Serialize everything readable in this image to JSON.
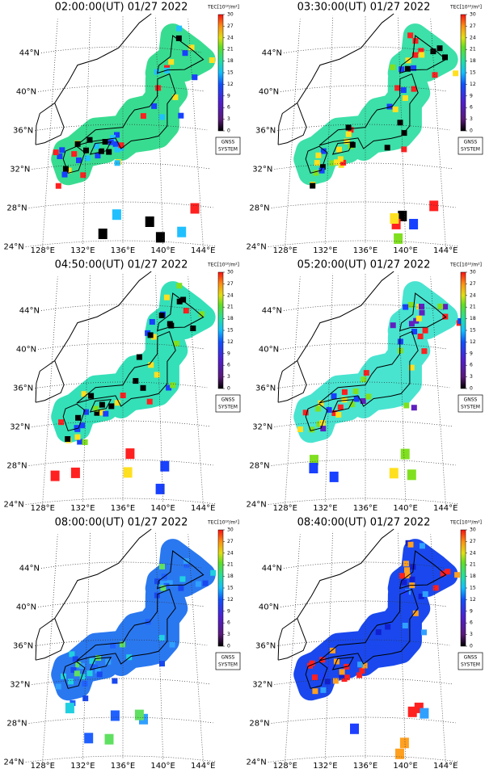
{
  "panels": [
    {
      "title": "02:00:00(UT) 01/27 2022"
    },
    {
      "title": "03:30:00(UT) 01/27 2022"
    },
    {
      "title": "04:50:00(UT) 01/27 2022"
    },
    {
      "title": "05:20:00(UT) 01/27 2022"
    },
    {
      "title": "08:00:00(UT) 01/27 2022"
    },
    {
      "title": "08:40:00(UT) 01/27 2022"
    }
  ],
  "lat_ticks": [
    {
      "value": 44,
      "label": "44°N"
    },
    {
      "value": 40,
      "label": "40°N"
    },
    {
      "value": 36,
      "label": "36°N"
    },
    {
      "value": 32,
      "label": "32°N"
    },
    {
      "value": 28,
      "label": "28°N"
    },
    {
      "value": 24,
      "label": "24°N"
    }
  ],
  "lon_ticks": [
    {
      "value": 128,
      "label": "128°E"
    },
    {
      "value": 132,
      "label": "132°E"
    },
    {
      "value": 136,
      "label": "136°E"
    },
    {
      "value": 140,
      "label": "140°E"
    },
    {
      "value": 144,
      "label": "144°E"
    }
  ],
  "colorbar": {
    "label": "TEC[10¹⁶/m²]",
    "lim": [
      0,
      30
    ],
    "ticks": [
      0,
      3,
      6,
      9,
      12,
      15,
      18,
      21,
      24,
      27,
      30
    ]
  },
  "logo": [
    "GNSS",
    "SYSTEM"
  ]
}
